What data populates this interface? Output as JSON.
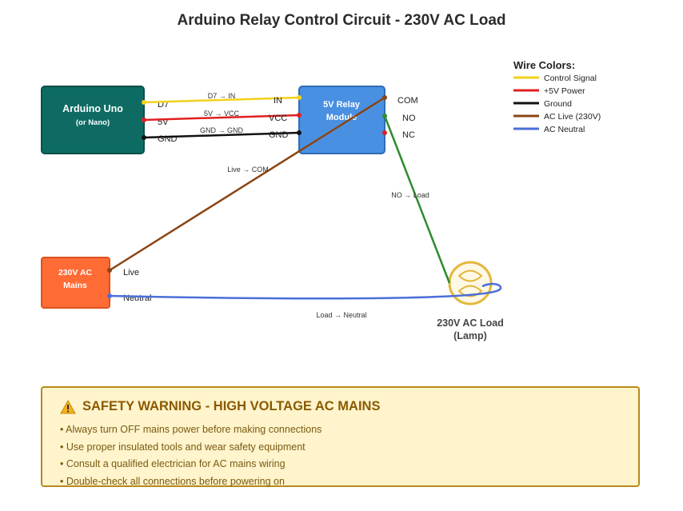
{
  "title": "Arduino Relay Control Circuit - 230V AC Load",
  "arduino": {
    "title": "Arduino Uno",
    "subtitle": "(or Nano)",
    "pins": [
      "D7",
      "5V",
      "GND"
    ]
  },
  "relay": {
    "title_line1": "5V Relay",
    "title_line2": "Module",
    "input_pins": [
      "IN",
      "VCC",
      "GND"
    ],
    "output_pins": [
      "COM",
      "NO",
      "NC"
    ]
  },
  "mains": {
    "title_line1": "230V AC",
    "title_line2": "Mains",
    "pins": [
      "Live",
      "Neutral"
    ]
  },
  "load": {
    "line1": "230V AC Load",
    "line2": "(Lamp)"
  },
  "wire_labels": {
    "signal": "D7 → IN",
    "power": "5V → VCC",
    "ground": "GND → GND",
    "live": "Live → COM",
    "no_load": "NO → Load",
    "neutral": "Load → Neutral"
  },
  "legend": {
    "title": "Wire Colors:",
    "items": [
      {
        "label": "Control Signal",
        "color": "#f2d21a"
      },
      {
        "label": "+5V Power",
        "color": "#e02020"
      },
      {
        "label": "Ground",
        "color": "#111111"
      },
      {
        "label": "AC Live (230V)",
        "color": "#8b4513"
      },
      {
        "label": "AC Neutral",
        "color": "#4a6fd8"
      }
    ]
  },
  "colors": {
    "arduino": "#0d6b63",
    "relay": "#4a90e2",
    "mains": "#ff6b35",
    "lamp": "#e3b73a",
    "no_wire": "#2e8b2e"
  },
  "warning": {
    "title": "SAFETY WARNING - HIGH VOLTAGE AC MAINS",
    "items": [
      "• Always turn OFF mains power before making connections",
      "• Use proper insulated tools and wear safety equipment",
      "• Consult a qualified electrician for AC mains wiring",
      "• Double-check all connections before powering on"
    ]
  }
}
